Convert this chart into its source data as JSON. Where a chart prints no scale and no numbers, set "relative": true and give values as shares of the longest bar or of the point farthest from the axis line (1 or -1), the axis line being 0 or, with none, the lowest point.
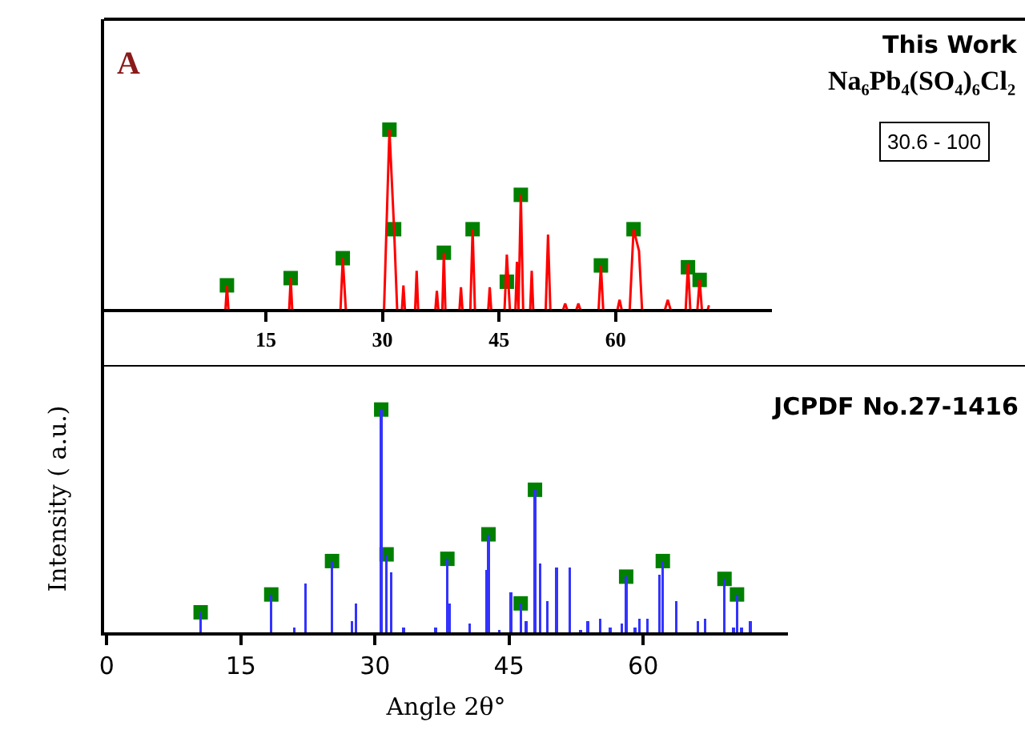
{
  "chart_data": [
    {
      "type": "line",
      "relative": true,
      "xlim": [
        -5.8,
        80.1
      ],
      "xticks": [
        15,
        30,
        45,
        60
      ],
      "grid": false,
      "legend": false,
      "annotations": [
        "A",
        "This Work",
        "Na₆Pb₄(SO₄)₆Cl₂",
        "30.6 - 100"
      ],
      "series": [
        {
          "color": "#ff0000",
          "x": [
            9.8,
            10.0,
            10.2,
            18.0,
            18.2,
            18.4,
            24.6,
            24.9,
            25.3,
            30.2,
            30.9,
            31.5,
            31.9,
            32.5,
            32.7,
            32.9,
            34.2,
            34.4,
            34.6,
            36.8,
            37.0,
            37.2,
            37.7,
            37.9,
            38.1,
            39.9,
            40.1,
            40.3,
            41.3,
            41.6,
            41.9,
            43.6,
            43.8,
            44.0,
            45.7,
            46.0,
            46.4,
            47.1,
            47.3,
            47.5,
            47.8,
            48.1,
            49.0,
            49.2,
            49.4,
            51.0,
            51.3,
            51.6,
            53.2,
            53.5,
            53.8,
            54.9,
            55.2,
            55.5,
            57.8,
            58.1,
            58.4,
            60.2,
            60.5,
            60.8,
            61.8,
            62.3,
            63.0,
            63.4,
            66.3,
            66.7,
            67.1,
            69.0,
            69.3,
            69.6,
            70.5,
            70.8,
            71.1,
            71.8,
            72.0
          ],
          "values": [
            0,
            0.14,
            0,
            0,
            0.18,
            0,
            0,
            0.29,
            0,
            0,
            1.0,
            0.45,
            0,
            0,
            0.14,
            0,
            0,
            0.22,
            0,
            0,
            0.11,
            0,
            0,
            0.32,
            0,
            0,
            0.13,
            0,
            0,
            0.45,
            0,
            0,
            0.13,
            0,
            0,
            0.31,
            0,
            0,
            0.27,
            0,
            0.64,
            0,
            0,
            0.22,
            0,
            0,
            0.42,
            0,
            0,
            0.04,
            0,
            0,
            0.04,
            0,
            0,
            0.25,
            0,
            0,
            0.06,
            0,
            0,
            0.45,
            0.33,
            0,
            0,
            0.06,
            0,
            0,
            0.26,
            0,
            0,
            0.17,
            0,
            0,
            0.03
          ]
        },
        {
          "type": "scatter",
          "marker": "square",
          "color": "#008000",
          "x": [
            10.0,
            18.2,
            24.9,
            30.9,
            31.5,
            37.9,
            41.6,
            46.0,
            47.8,
            58.1,
            62.3,
            69.3,
            70.8
          ],
          "values": [
            0.14,
            0.18,
            0.29,
            1.0,
            0.45,
            0.32,
            0.45,
            0.16,
            0.64,
            0.25,
            0.45,
            0.24,
            0.17
          ]
        }
      ]
    },
    {
      "type": "bar",
      "relative": true,
      "xlim": [
        -0.3,
        76.2
      ],
      "xticks": [
        0,
        15,
        30,
        45,
        60
      ],
      "grid": false,
      "legend": false,
      "xlabel": "Angle 2θ°",
      "ylabel": "Intensity ( a.u.)",
      "annotations": [
        "JCPDF No.27-1416"
      ],
      "series": [
        {
          "color": "#3333ff",
          "x": [
            10.5,
            18.4,
            21.0,
            22.2,
            25.2,
            27.4,
            27.9,
            30.7,
            31.3,
            31.8,
            33.2,
            36.8,
            38.1,
            38.3,
            40.6,
            42.5,
            42.7,
            43.9,
            45.2,
            46.3,
            46.9,
            47.9,
            48.5,
            49.3,
            50.3,
            51.8,
            53.0,
            53.8,
            55.2,
            56.3,
            57.6,
            58.1,
            59.1,
            59.6,
            60.5,
            61.8,
            62.2,
            63.7,
            66.1,
            66.9,
            69.1,
            70.1,
            70.5,
            71.0,
            72.0
          ],
          "values": [
            0.09,
            0.17,
            0.02,
            0.22,
            0.32,
            0.05,
            0.13,
            1.0,
            0.35,
            0.27,
            0.02,
            0.02,
            0.33,
            0.13,
            0.04,
            0.28,
            0.44,
            0.01,
            0.18,
            0.13,
            0.05,
            0.64,
            0.31,
            0.14,
            0.29,
            0.29,
            0.01,
            0.05,
            0.06,
            0.02,
            0.04,
            0.25,
            0.02,
            0.06,
            0.06,
            0.26,
            0.32,
            0.14,
            0.05,
            0.06,
            0.24,
            0.02,
            0.17,
            0.02,
            0.05
          ]
        },
        {
          "type": "scatter",
          "marker": "square",
          "color": "#008000",
          "x": [
            10.5,
            18.4,
            25.2,
            30.7,
            31.3,
            38.1,
            42.7,
            46.3,
            47.9,
            58.1,
            62.2,
            69.1,
            70.5
          ],
          "values": [
            0.09,
            0.17,
            0.32,
            1.0,
            0.35,
            0.33,
            0.44,
            0.13,
            0.64,
            0.25,
            0.32,
            0.24,
            0.17
          ]
        }
      ]
    }
  ]
}
